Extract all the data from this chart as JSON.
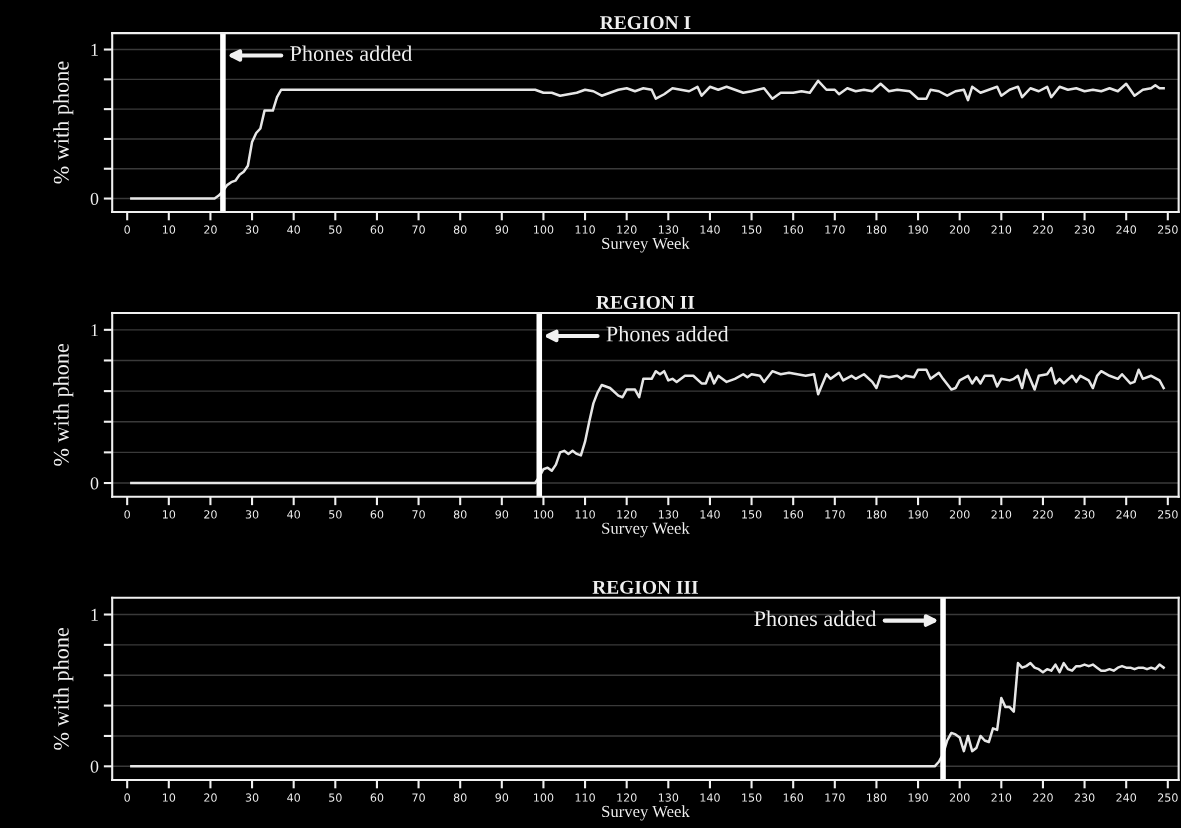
{
  "chart_data": [
    {
      "type": "line",
      "title": "REGION I",
      "xlabel": "Survey Week",
      "ylabel": "% with phone",
      "xlim": [
        -3.6,
        252.6
      ],
      "ylim": [
        -0.09,
        1.11
      ],
      "xticks": [
        0,
        10,
        20,
        30,
        40,
        50,
        60,
        70,
        80,
        90,
        100,
        110,
        120,
        130,
        140,
        150,
        160,
        170,
        180,
        190,
        200,
        210,
        220,
        230,
        240,
        250
      ],
      "yticks": [
        0,
        {
          "value": 0.2,
          "label": null
        },
        {
          "value": 0.4,
          "label": null
        },
        {
          "value": 0.6,
          "label": null
        },
        {
          "value": 0.8,
          "label": null
        },
        1
      ],
      "grid": "y",
      "line_style": "solid",
      "marker": "none",
      "ref_lines": [
        {
          "axis": "x",
          "value": 23,
          "label": "Phones added",
          "color": "#ffffff"
        }
      ],
      "series": [
        {
          "color": "#e6e6e6",
          "x": [
            1,
            21,
            22,
            23,
            24,
            25,
            26,
            27,
            28,
            29,
            30,
            31,
            32,
            33,
            34,
            35,
            36,
            37,
            98,
            100,
            102,
            104,
            106,
            108,
            110,
            112,
            114,
            116,
            118,
            120,
            122,
            124,
            126,
            127,
            129,
            131,
            133,
            135,
            137,
            138,
            140,
            142,
            144,
            146,
            148,
            150,
            153,
            155,
            157,
            160,
            162,
            164,
            166,
            168,
            170,
            171,
            173,
            175,
            177,
            179,
            181,
            183,
            185,
            188,
            190,
            192,
            193,
            195,
            197,
            199,
            201,
            202,
            203,
            205,
            207,
            209,
            210,
            212,
            214,
            215,
            217,
            219,
            221,
            222,
            224,
            226,
            228,
            230,
            232,
            234,
            236,
            238,
            240,
            242,
            244,
            246,
            247,
            248,
            249
          ],
          "values": [
            0,
            0,
            0.02,
            0.05,
            0.09,
            0.11,
            0.12,
            0.16,
            0.18,
            0.22,
            0.38,
            0.44,
            0.47,
            0.59,
            0.59,
            0.59,
            0.68,
            0.73,
            0.73,
            0.71,
            0.71,
            0.69,
            0.7,
            0.71,
            0.73,
            0.72,
            0.69,
            0.71,
            0.73,
            0.74,
            0.72,
            0.74,
            0.73,
            0.67,
            0.7,
            0.74,
            0.73,
            0.72,
            0.75,
            0.69,
            0.75,
            0.73,
            0.75,
            0.73,
            0.71,
            0.72,
            0.74,
            0.67,
            0.71,
            0.71,
            0.72,
            0.71,
            0.79,
            0.73,
            0.73,
            0.7,
            0.74,
            0.72,
            0.73,
            0.72,
            0.77,
            0.72,
            0.73,
            0.72,
            0.67,
            0.67,
            0.73,
            0.72,
            0.69,
            0.72,
            0.73,
            0.66,
            0.75,
            0.71,
            0.73,
            0.75,
            0.69,
            0.73,
            0.75,
            0.68,
            0.74,
            0.72,
            0.75,
            0.68,
            0.75,
            0.73,
            0.74,
            0.72,
            0.73,
            0.72,
            0.74,
            0.72,
            0.77,
            0.69,
            0.73,
            0.74,
            0.76,
            0.74,
            0.74
          ]
        }
      ]
    },
    {
      "type": "line",
      "title": "REGION II",
      "xlabel": "Survey Week",
      "ylabel": "% with phone",
      "xlim": [
        -3.6,
        252.6
      ],
      "ylim": [
        -0.09,
        1.11
      ],
      "xticks": [
        0,
        10,
        20,
        30,
        40,
        50,
        60,
        70,
        80,
        90,
        100,
        110,
        120,
        130,
        140,
        150,
        160,
        170,
        180,
        190,
        200,
        210,
        220,
        230,
        240,
        250
      ],
      "yticks": [
        0,
        {
          "value": 0.2,
          "label": null
        },
        {
          "value": 0.4,
          "label": null
        },
        {
          "value": 0.6,
          "label": null
        },
        {
          "value": 0.8,
          "label": null
        },
        1
      ],
      "grid": "y",
      "line_style": "solid",
      "marker": "none",
      "ref_lines": [
        {
          "axis": "x",
          "value": 99,
          "label": "Phones added",
          "color": "#ffffff"
        }
      ],
      "series": [
        {
          "color": "#e6e6e6",
          "x": [
            1,
            98,
            99,
            100,
            101,
            102,
            103,
            104,
            105,
            106,
            107,
            108,
            109,
            110,
            111,
            112,
            113,
            114,
            116,
            118,
            119,
            120,
            122,
            123,
            124,
            126,
            127,
            128,
            129,
            130,
            131,
            132,
            134,
            136,
            138,
            139,
            140,
            141,
            142,
            144,
            146,
            148,
            149,
            150,
            152,
            153,
            155,
            157,
            159,
            161,
            163,
            165,
            166,
            168,
            169,
            171,
            172,
            174,
            175,
            177,
            179,
            180,
            181,
            183,
            185,
            186,
            187,
            189,
            190,
            192,
            193,
            195,
            196,
            198,
            199,
            200,
            202,
            203,
            204,
            205,
            206,
            208,
            209,
            210,
            212,
            213,
            214,
            215,
            216,
            218,
            219,
            221,
            222,
            223,
            224,
            225,
            227,
            228,
            229,
            231,
            232,
            233,
            234,
            236,
            238,
            239,
            241,
            242,
            243,
            244,
            246,
            248,
            249
          ],
          "values": [
            0,
            0,
            0.04,
            0.09,
            0.1,
            0.08,
            0.12,
            0.2,
            0.21,
            0.19,
            0.21,
            0.19,
            0.18,
            0.27,
            0.4,
            0.52,
            0.59,
            0.64,
            0.62,
            0.57,
            0.56,
            0.61,
            0.61,
            0.56,
            0.68,
            0.68,
            0.73,
            0.71,
            0.73,
            0.67,
            0.68,
            0.66,
            0.7,
            0.7,
            0.65,
            0.65,
            0.72,
            0.65,
            0.7,
            0.66,
            0.68,
            0.71,
            0.69,
            0.71,
            0.7,
            0.66,
            0.73,
            0.71,
            0.72,
            0.71,
            0.7,
            0.71,
            0.58,
            0.71,
            0.68,
            0.72,
            0.67,
            0.7,
            0.68,
            0.71,
            0.66,
            0.62,
            0.7,
            0.69,
            0.7,
            0.68,
            0.7,
            0.69,
            0.74,
            0.74,
            0.68,
            0.72,
            0.68,
            0.61,
            0.62,
            0.67,
            0.7,
            0.65,
            0.69,
            0.65,
            0.7,
            0.7,
            0.63,
            0.68,
            0.67,
            0.68,
            0.7,
            0.62,
            0.74,
            0.61,
            0.7,
            0.71,
            0.75,
            0.65,
            0.68,
            0.65,
            0.7,
            0.66,
            0.7,
            0.67,
            0.62,
            0.7,
            0.73,
            0.7,
            0.68,
            0.71,
            0.65,
            0.66,
            0.74,
            0.68,
            0.7,
            0.67,
            0.62
          ]
        }
      ]
    },
    {
      "type": "line",
      "title": "REGION III",
      "xlabel": "Survey Week",
      "ylabel": "% with phone",
      "xlim": [
        -3.6,
        252.6
      ],
      "ylim": [
        -0.09,
        1.11
      ],
      "xticks": [
        0,
        10,
        20,
        30,
        40,
        50,
        60,
        70,
        80,
        90,
        100,
        110,
        120,
        130,
        140,
        150,
        160,
        170,
        180,
        190,
        200,
        210,
        220,
        230,
        240,
        250
      ],
      "yticks": [
        0,
        {
          "value": 0.2,
          "label": null
        },
        {
          "value": 0.4,
          "label": null
        },
        {
          "value": 0.6,
          "label": null
        },
        {
          "value": 0.8,
          "label": null
        },
        1
      ],
      "grid": "y",
      "line_style": "solid",
      "marker": "none",
      "ref_lines": [
        {
          "axis": "x",
          "value": 196,
          "label": "Phones added",
          "color": "#ffffff"
        }
      ],
      "series": [
        {
          "color": "#e6e6e6",
          "x": [
            1,
            194,
            195,
            196,
            197,
            198,
            199,
            200,
            201,
            202,
            203,
            204,
            205,
            206,
            207,
            208,
            209,
            210,
            211,
            212,
            213,
            214,
            215,
            216,
            217,
            218,
            219,
            220,
            221,
            222,
            223,
            224,
            225,
            226,
            227,
            228,
            229,
            230,
            231,
            232,
            233,
            234,
            235,
            236,
            237,
            238,
            239,
            240,
            241,
            242,
            243,
            244,
            245,
            246,
            247,
            248,
            249
          ],
          "values": [
            0,
            0,
            0.03,
            0.08,
            0.17,
            0.22,
            0.21,
            0.19,
            0.1,
            0.2,
            0.1,
            0.12,
            0.2,
            0.17,
            0.16,
            0.25,
            0.24,
            0.45,
            0.39,
            0.39,
            0.36,
            0.68,
            0.65,
            0.66,
            0.68,
            0.65,
            0.64,
            0.62,
            0.64,
            0.63,
            0.67,
            0.62,
            0.68,
            0.64,
            0.63,
            0.66,
            0.66,
            0.67,
            0.66,
            0.67,
            0.65,
            0.63,
            0.63,
            0.64,
            0.63,
            0.65,
            0.66,
            0.65,
            0.65,
            0.64,
            0.65,
            0.65,
            0.64,
            0.65,
            0.64,
            0.67,
            0.65
          ]
        }
      ]
    }
  ]
}
